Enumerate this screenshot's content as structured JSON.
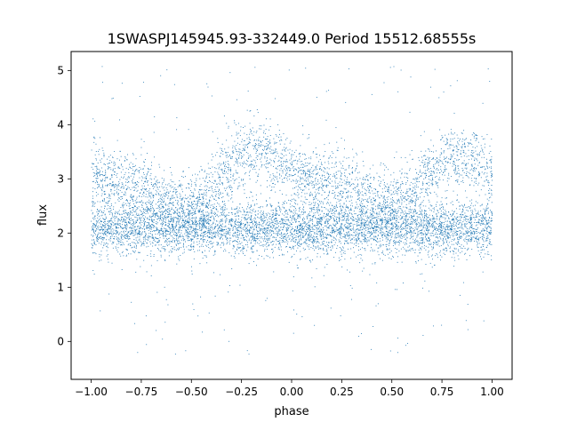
{
  "chart_data": {
    "type": "scatter",
    "title": "1SWASPJ145945.93-332449.0 Period 15512.68555s",
    "xlabel": "phase",
    "ylabel": "flux",
    "xlim": [
      -1.1,
      1.1
    ],
    "ylim": [
      -0.7,
      5.35
    ],
    "xticks": [
      -1.0,
      -0.75,
      -0.5,
      -0.25,
      0.0,
      0.25,
      0.5,
      0.75,
      1.0
    ],
    "xtick_labels": [
      "−1.00",
      "−0.75",
      "−0.50",
      "−0.25",
      "0.00",
      "0.25",
      "0.50",
      "0.75",
      "1.00"
    ],
    "yticks": [
      0,
      1,
      2,
      3,
      4,
      5
    ],
    "ytick_labels": [
      "0",
      "1",
      "2",
      "3",
      "4",
      "5"
    ],
    "grid": false,
    "marker_color": "#1f77b4",
    "marker": "tiny-point",
    "series": [
      {
        "name": "",
        "description_points_phase_flux": {
          "baseline_band": {
            "flux_center": 2.1,
            "flux_spread": 0.25
          },
          "upper_band_profile": [
            [
              -1.0,
              3.05
            ],
            [
              -0.9,
              3.0
            ],
            [
              -0.75,
              2.8
            ],
            [
              -0.6,
              2.55
            ],
            [
              -0.5,
              2.55
            ],
            [
              -0.4,
              2.8
            ],
            [
              -0.3,
              3.3
            ],
            [
              -0.2,
              3.55
            ],
            [
              -0.1,
              3.45
            ],
            [
              0.0,
              3.15
            ],
            [
              0.1,
              2.95
            ],
            [
              0.2,
              2.95
            ],
            [
              0.3,
              2.85
            ],
            [
              0.4,
              2.65
            ],
            [
              0.5,
              2.55
            ],
            [
              0.6,
              2.75
            ],
            [
              0.7,
              3.2
            ],
            [
              0.8,
              3.45
            ],
            [
              0.9,
              3.35
            ],
            [
              1.0,
              3.1
            ]
          ],
          "upper_band_spread": 0.3,
          "outlier_range": [
            -0.4,
            5.1
          ]
        }
      }
    ]
  }
}
